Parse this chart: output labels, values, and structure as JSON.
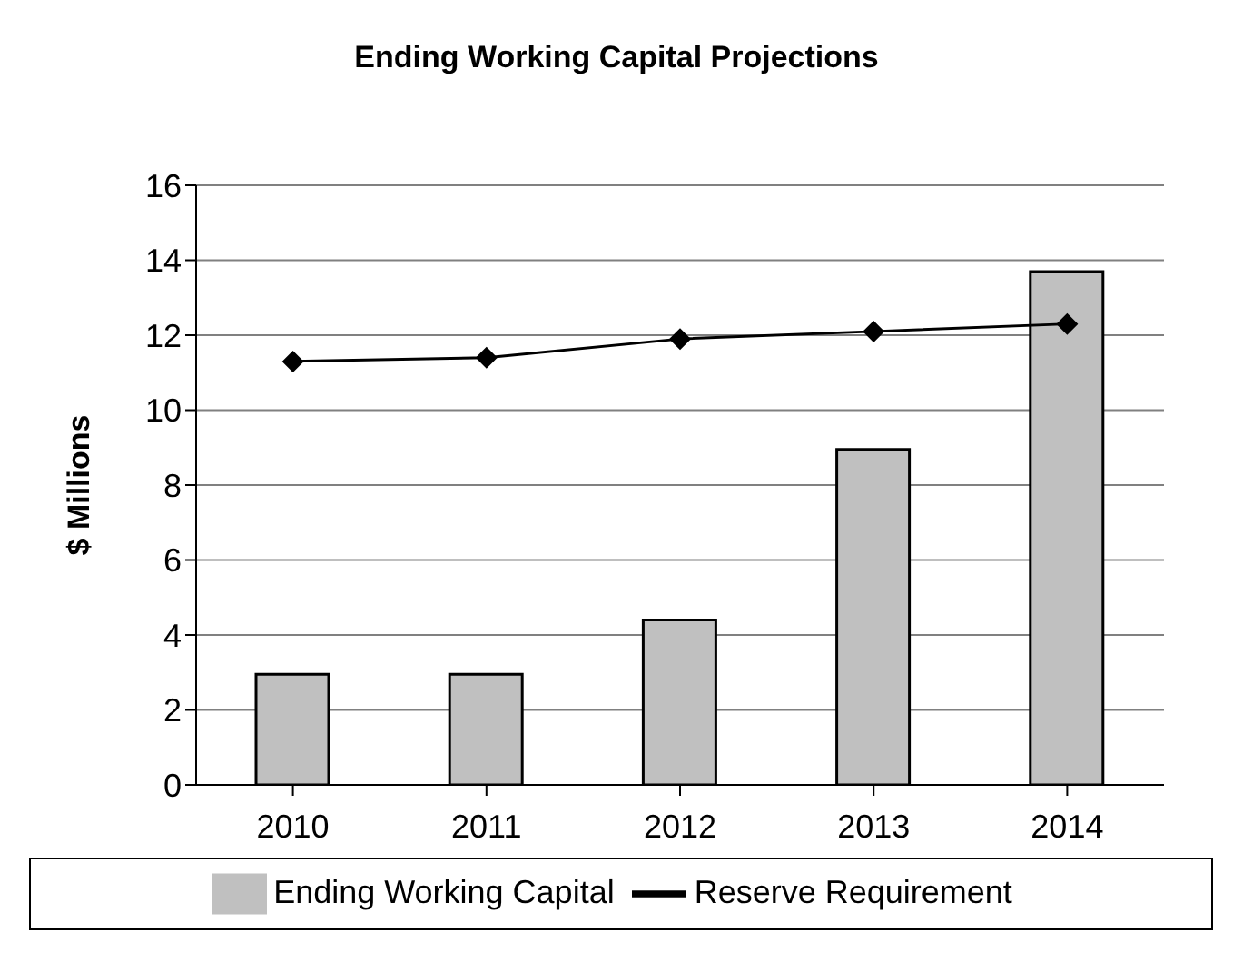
{
  "chart_data": {
    "type": "bar",
    "title": "Ending Working Capital Projections",
    "ylabel": "$ Millions",
    "categories": [
      "2010",
      "2011",
      "2012",
      "2013",
      "2014"
    ],
    "series": [
      {
        "name": "Ending Working Capital",
        "color": "#c0c0c0",
        "values": [
          2.95,
          2.95,
          4.4,
          8.95,
          13.7
        ]
      },
      {
        "name": "Reserve Requirement",
        "type": "line",
        "color": "#000000",
        "marker": "diamond",
        "values": [
          11.3,
          11.4,
          11.9,
          12.1,
          12.3
        ]
      }
    ],
    "ylim": [
      0,
      16
    ],
    "yticks": [
      0,
      2,
      4,
      6,
      8,
      10,
      12,
      14,
      16
    ],
    "grid": "y",
    "legend": "bottom"
  }
}
